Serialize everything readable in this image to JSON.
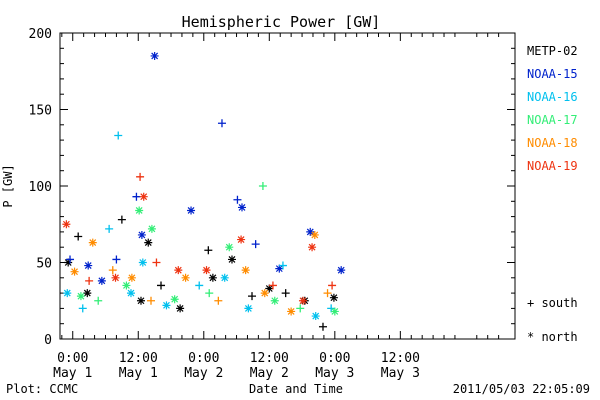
{
  "chart_data": {
    "type": "scatter",
    "title": "Hemispheric Power [GW]",
    "ylabel": "P [GW]",
    "xlabel": "Date and Time",
    "xlim": [
      "2011-04-30T21:40",
      "2011-05-04T09:00"
    ],
    "ylim": [
      0,
      200
    ],
    "yticks": [
      0,
      50,
      100,
      150,
      200
    ],
    "xticks": [
      {
        "time": "2011-05-01T00:00",
        "time_label": "0:00",
        "date_label": "May 1"
      },
      {
        "time": "2011-05-01T12:00",
        "time_label": "12:00",
        "date_label": "May 1"
      },
      {
        "time": "2011-05-02T00:00",
        "time_label": "0:00",
        "date_label": "May 2"
      },
      {
        "time": "2011-05-02T12:00",
        "time_label": "12:00",
        "date_label": "May 2"
      },
      {
        "time": "2011-05-03T00:00",
        "time_label": "0:00",
        "date_label": "May 3"
      },
      {
        "time": "2011-05-03T12:00",
        "time_label": "12:00",
        "date_label": "May 3"
      }
    ],
    "grid": false,
    "legend_position": "right",
    "marker_legend": {
      "south": "+ south",
      "north": "* north"
    },
    "series": [
      {
        "name": "METP-02",
        "color": "#000000",
        "points": [
          {
            "t": "2011-04-30T23:10",
            "p": 50,
            "m": "north"
          },
          {
            "t": "2011-05-01T01:00",
            "p": 67,
            "m": "south"
          },
          {
            "t": "2011-05-01T02:40",
            "p": 30,
            "m": "north"
          },
          {
            "t": "2011-05-01T09:00",
            "p": 78,
            "m": "south"
          },
          {
            "t": "2011-05-01T12:30",
            "p": 25,
            "m": "north"
          },
          {
            "t": "2011-05-01T13:50",
            "p": 63,
            "m": "north"
          },
          {
            "t": "2011-05-01T16:10",
            "p": 35,
            "m": "south"
          },
          {
            "t": "2011-05-01T19:40",
            "p": 20,
            "m": "north"
          },
          {
            "t": "2011-05-02T00:50",
            "p": 58,
            "m": "south"
          },
          {
            "t": "2011-05-02T01:40",
            "p": 40,
            "m": "north"
          },
          {
            "t": "2011-05-02T05:10",
            "p": 52,
            "m": "north"
          },
          {
            "t": "2011-05-02T08:50",
            "p": 28,
            "m": "south"
          },
          {
            "t": "2011-05-02T12:00",
            "p": 33,
            "m": "north"
          },
          {
            "t": "2011-05-02T15:00",
            "p": 30,
            "m": "south"
          },
          {
            "t": "2011-05-02T18:30",
            "p": 25,
            "m": "north"
          },
          {
            "t": "2011-05-02T21:50",
            "p": 8,
            "m": "south"
          },
          {
            "t": "2011-05-02T23:50",
            "p": 27,
            "m": "north"
          }
        ]
      },
      {
        "name": "NOAA-15",
        "color": "#0022cc",
        "points": [
          {
            "t": "2011-04-30T23:30",
            "p": 52,
            "m": "south"
          },
          {
            "t": "2011-05-01T02:50",
            "p": 48,
            "m": "north"
          },
          {
            "t": "2011-05-01T05:20",
            "p": 38,
            "m": "north"
          },
          {
            "t": "2011-05-01T08:00",
            "p": 52,
            "m": "south"
          },
          {
            "t": "2011-05-01T11:40",
            "p": 93,
            "m": "south"
          },
          {
            "t": "2011-05-01T12:40",
            "p": 68,
            "m": "north"
          },
          {
            "t": "2011-05-01T15:00",
            "p": 185,
            "m": "north"
          },
          {
            "t": "2011-05-01T21:40",
            "p": 84,
            "m": "north"
          },
          {
            "t": "2011-05-02T03:20",
            "p": 141,
            "m": "south"
          },
          {
            "t": "2011-05-02T06:10",
            "p": 91,
            "m": "south"
          },
          {
            "t": "2011-05-02T07:00",
            "p": 86,
            "m": "north"
          },
          {
            "t": "2011-05-02T09:30",
            "p": 62,
            "m": "south"
          },
          {
            "t": "2011-05-02T13:50",
            "p": 46,
            "m": "north"
          },
          {
            "t": "2011-05-02T19:30",
            "p": 70,
            "m": "north"
          },
          {
            "t": "2011-05-03T01:10",
            "p": 45,
            "m": "north"
          }
        ]
      },
      {
        "name": "NOAA-16",
        "color": "#00c0ee",
        "points": [
          {
            "t": "2011-04-30T23:00",
            "p": 30,
            "m": "north"
          },
          {
            "t": "2011-05-01T01:50",
            "p": 20,
            "m": "south"
          },
          {
            "t": "2011-05-01T06:40",
            "p": 72,
            "m": "south"
          },
          {
            "t": "2011-05-01T08:20",
            "p": 133,
            "m": "south"
          },
          {
            "t": "2011-05-01T10:40",
            "p": 30,
            "m": "north"
          },
          {
            "t": "2011-05-01T12:50",
            "p": 50,
            "m": "north"
          },
          {
            "t": "2011-05-01T17:10",
            "p": 22,
            "m": "north"
          },
          {
            "t": "2011-05-01T23:10",
            "p": 35,
            "m": "south"
          },
          {
            "t": "2011-05-02T03:50",
            "p": 40,
            "m": "north"
          },
          {
            "t": "2011-05-02T08:10",
            "p": 20,
            "m": "north"
          },
          {
            "t": "2011-05-02T14:30",
            "p": 48,
            "m": "south"
          },
          {
            "t": "2011-05-02T20:30",
            "p": 15,
            "m": "north"
          },
          {
            "t": "2011-05-02T23:20",
            "p": 20,
            "m": "south"
          }
        ]
      },
      {
        "name": "NOAA-17",
        "color": "#33ee77",
        "points": [
          {
            "t": "2011-05-01T01:30",
            "p": 28,
            "m": "north"
          },
          {
            "t": "2011-05-01T04:40",
            "p": 25,
            "m": "south"
          },
          {
            "t": "2011-05-01T09:50",
            "p": 35,
            "m": "north"
          },
          {
            "t": "2011-05-01T12:10",
            "p": 84,
            "m": "north"
          },
          {
            "t": "2011-05-01T14:30",
            "p": 72,
            "m": "north"
          },
          {
            "t": "2011-05-01T18:40",
            "p": 26,
            "m": "north"
          },
          {
            "t": "2011-05-02T01:00",
            "p": 30,
            "m": "south"
          },
          {
            "t": "2011-05-02T04:40",
            "p": 60,
            "m": "north"
          },
          {
            "t": "2011-05-02T10:50",
            "p": 100,
            "m": "south"
          },
          {
            "t": "2011-05-02T13:00",
            "p": 25,
            "m": "north"
          },
          {
            "t": "2011-05-02T17:40",
            "p": 20,
            "m": "south"
          },
          {
            "t": "2011-05-03T00:00",
            "p": 18,
            "m": "north"
          }
        ]
      },
      {
        "name": "NOAA-18",
        "color": "#ff8c00",
        "points": [
          {
            "t": "2011-05-01T00:20",
            "p": 44,
            "m": "north"
          },
          {
            "t": "2011-05-01T03:40",
            "p": 63,
            "m": "north"
          },
          {
            "t": "2011-05-01T07:20",
            "p": 45,
            "m": "south"
          },
          {
            "t": "2011-05-01T10:50",
            "p": 40,
            "m": "north"
          },
          {
            "t": "2011-05-01T14:20",
            "p": 25,
            "m": "south"
          },
          {
            "t": "2011-05-01T20:40",
            "p": 40,
            "m": "north"
          },
          {
            "t": "2011-05-02T02:40",
            "p": 25,
            "m": "south"
          },
          {
            "t": "2011-05-02T07:40",
            "p": 45,
            "m": "north"
          },
          {
            "t": "2011-05-02T11:10",
            "p": 30,
            "m": "north"
          },
          {
            "t": "2011-05-02T16:00",
            "p": 18,
            "m": "north"
          },
          {
            "t": "2011-05-02T20:20",
            "p": 68,
            "m": "north"
          },
          {
            "t": "2011-05-02T22:40",
            "p": 30,
            "m": "south"
          }
        ]
      },
      {
        "name": "NOAA-19",
        "color": "#ee3311",
        "points": [
          {
            "t": "2011-04-30T22:50",
            "p": 75,
            "m": "north"
          },
          {
            "t": "2011-05-01T03:00",
            "p": 38,
            "m": "south"
          },
          {
            "t": "2011-05-01T07:50",
            "p": 40,
            "m": "north"
          },
          {
            "t": "2011-05-01T12:20",
            "p": 106,
            "m": "south"
          },
          {
            "t": "2011-05-01T13:00",
            "p": 93,
            "m": "north"
          },
          {
            "t": "2011-05-01T15:20",
            "p": 50,
            "m": "south"
          },
          {
            "t": "2011-05-01T19:20",
            "p": 45,
            "m": "north"
          },
          {
            "t": "2011-05-02T00:30",
            "p": 45,
            "m": "north"
          },
          {
            "t": "2011-05-02T06:50",
            "p": 65,
            "m": "north"
          },
          {
            "t": "2011-05-02T12:40",
            "p": 35,
            "m": "south"
          },
          {
            "t": "2011-05-02T18:10",
            "p": 25,
            "m": "north"
          },
          {
            "t": "2011-05-02T19:50",
            "p": 60,
            "m": "north"
          },
          {
            "t": "2011-05-02T23:30",
            "p": 35,
            "m": "south"
          }
        ]
      }
    ]
  },
  "footer": {
    "source": "Plot: CCMC",
    "timestamp": "2011/05/03 22:05:09"
  }
}
